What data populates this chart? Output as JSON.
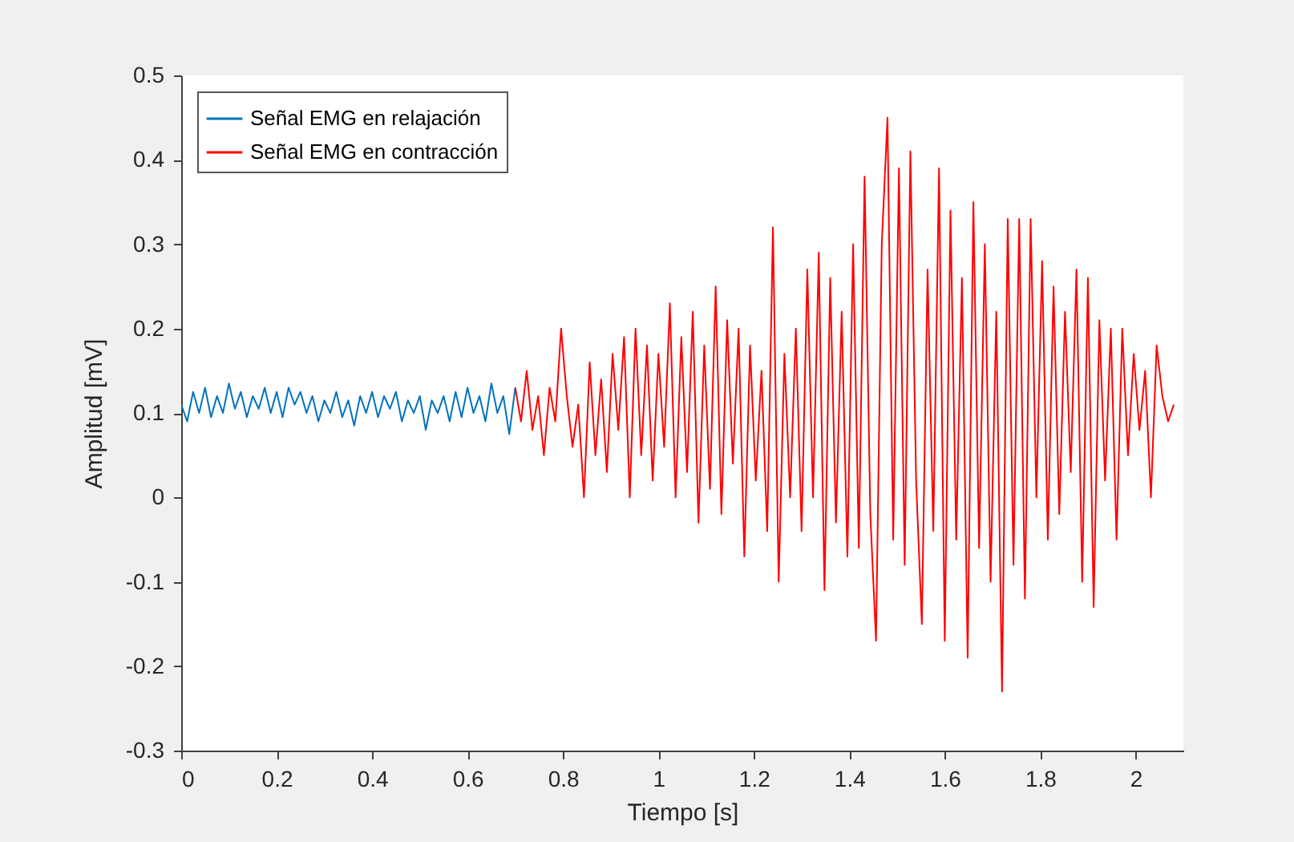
{
  "chart_data": {
    "type": "line",
    "xlabel": "Tiempo [s]",
    "ylabel": "Amplitud [mV]",
    "xlim": [
      0,
      2.1
    ],
    "xticks": [
      0,
      0.2,
      0.4,
      0.6,
      0.8,
      1,
      1.2,
      1.4,
      1.6,
      1.8,
      2
    ],
    "ylim": [
      -0.3,
      0.5
    ],
    "yticks": [
      -0.3,
      -0.2,
      -0.1,
      0,
      0.1,
      0.2,
      0.3,
      0.4,
      0.5
    ],
    "grid": false,
    "legend": "top left",
    "series": [
      {
        "name": "Señal EMG en relajación",
        "color": "#0072bd",
        "x": [
          0,
          0.0125,
          0.025,
          0.0375,
          0.05,
          0.0625,
          0.075,
          0.0875,
          0.1,
          0.1125,
          0.125,
          0.1375,
          0.15,
          0.1625,
          0.175,
          0.1875,
          0.2,
          0.2125,
          0.225,
          0.2375,
          0.25,
          0.2625,
          0.275,
          0.2875,
          0.3,
          0.3125,
          0.325,
          0.3375,
          0.35,
          0.3625,
          0.375,
          0.3875,
          0.4,
          0.4125,
          0.425,
          0.4375,
          0.45,
          0.4625,
          0.475,
          0.4875,
          0.5,
          0.5125,
          0.525,
          0.5375,
          0.55,
          0.5625,
          0.575,
          0.5875,
          0.6,
          0.6125,
          0.625,
          0.6375,
          0.65,
          0.6625,
          0.675,
          0.6875,
          0.7
        ],
        "values": [
          0.11,
          0.09,
          0.125,
          0.1,
          0.13,
          0.095,
          0.12,
          0.1,
          0.135,
          0.105,
          0.125,
          0.095,
          0.12,
          0.105,
          0.13,
          0.1,
          0.125,
          0.095,
          0.13,
          0.11,
          0.125,
          0.1,
          0.12,
          0.09,
          0.115,
          0.1,
          0.125,
          0.095,
          0.115,
          0.085,
          0.12,
          0.1,
          0.125,
          0.095,
          0.12,
          0.105,
          0.125,
          0.09,
          0.115,
          0.1,
          0.12,
          0.08,
          0.115,
          0.1,
          0.12,
          0.09,
          0.125,
          0.095,
          0.13,
          0.1,
          0.12,
          0.09,
          0.135,
          0.1,
          0.12,
          0.075,
          0.13
        ]
      },
      {
        "name": "Señal EMG en contracción",
        "color": "#ff0000",
        "x": [
          0.7,
          0.712,
          0.724,
          0.736,
          0.748,
          0.76,
          0.772,
          0.784,
          0.796,
          0.808,
          0.82,
          0.832,
          0.844,
          0.856,
          0.868,
          0.88,
          0.892,
          0.904,
          0.916,
          0.928,
          0.94,
          0.952,
          0.964,
          0.976,
          0.988,
          1.0,
          1.012,
          1.024,
          1.036,
          1.048,
          1.06,
          1.072,
          1.084,
          1.096,
          1.108,
          1.12,
          1.132,
          1.144,
          1.156,
          1.168,
          1.18,
          1.192,
          1.204,
          1.216,
          1.228,
          1.24,
          1.252,
          1.264,
          1.276,
          1.288,
          1.3,
          1.312,
          1.324,
          1.336,
          1.348,
          1.36,
          1.372,
          1.384,
          1.396,
          1.408,
          1.42,
          1.432,
          1.444,
          1.456,
          1.468,
          1.48,
          1.492,
          1.504,
          1.516,
          1.528,
          1.54,
          1.552,
          1.564,
          1.576,
          1.588,
          1.6,
          1.612,
          1.624,
          1.636,
          1.648,
          1.66,
          1.672,
          1.684,
          1.696,
          1.708,
          1.72,
          1.732,
          1.744,
          1.756,
          1.768,
          1.78,
          1.792,
          1.804,
          1.816,
          1.828,
          1.84,
          1.852,
          1.864,
          1.876,
          1.888,
          1.9,
          1.912,
          1.924,
          1.936,
          1.948,
          1.96,
          1.972,
          1.984,
          1.996,
          2.008,
          2.02,
          2.032,
          2.044,
          2.056,
          2.068,
          2.08
        ],
        "values": [
          0.13,
          0.09,
          0.15,
          0.08,
          0.12,
          0.05,
          0.13,
          0.09,
          0.2,
          0.12,
          0.06,
          0.11,
          0.0,
          0.16,
          0.05,
          0.14,
          0.03,
          0.17,
          0.08,
          0.19,
          0.0,
          0.2,
          0.05,
          0.18,
          0.02,
          0.17,
          0.06,
          0.23,
          0.0,
          0.19,
          0.03,
          0.22,
          -0.03,
          0.18,
          0.01,
          0.25,
          -0.02,
          0.21,
          0.04,
          0.2,
          -0.07,
          0.18,
          0.02,
          0.15,
          -0.04,
          0.32,
          -0.1,
          0.17,
          0.0,
          0.2,
          -0.04,
          0.27,
          0.0,
          0.29,
          -0.11,
          0.26,
          -0.03,
          0.22,
          -0.07,
          0.3,
          -0.06,
          0.38,
          -0.02,
          -0.17,
          0.3,
          0.45,
          -0.05,
          0.39,
          -0.08,
          0.41,
          0.02,
          -0.15,
          0.27,
          -0.04,
          0.39,
          -0.17,
          0.34,
          -0.05,
          0.26,
          -0.19,
          0.35,
          -0.06,
          0.3,
          -0.1,
          0.22,
          -0.23,
          0.33,
          -0.08,
          0.33,
          -0.12,
          0.33,
          0.0,
          0.28,
          -0.05,
          0.25,
          -0.02,
          0.22,
          0.03,
          0.27,
          -0.1,
          0.26,
          -0.13,
          0.21,
          0.02,
          0.2,
          -0.05,
          0.2,
          0.05,
          0.17,
          0.08,
          0.15,
          0.0,
          0.18,
          0.12,
          0.09,
          0.11
        ]
      }
    ]
  }
}
